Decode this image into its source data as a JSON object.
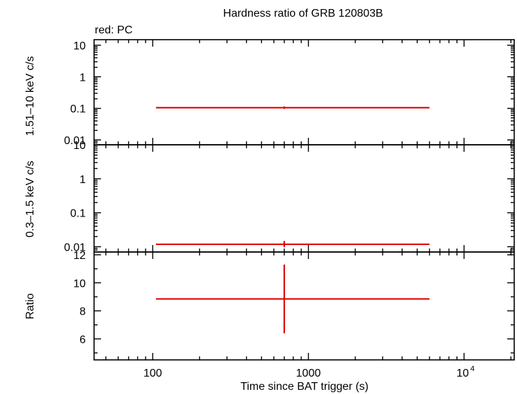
{
  "chart_data": {
    "type": "scatter",
    "title": "Hardness ratio of GRB 120803B",
    "subtitle": "red: PC",
    "xlabel": "Time since BAT trigger (s)",
    "x_scale": "log",
    "xlim": [
      42,
      21000
    ],
    "x_ticks": [
      {
        "value": 100,
        "label": "100"
      },
      {
        "value": 1000,
        "label": "1000"
      },
      {
        "value": 10000,
        "label": "10",
        "exponent": "4"
      }
    ],
    "color": "#e00000",
    "panels": [
      {
        "ylabel": "1.51–10 keV c/s",
        "y_scale": "log",
        "ylim": [
          0.007,
          15
        ],
        "y_ticks": [
          {
            "value": 0.01,
            "label": "0.01"
          },
          {
            "value": 0.1,
            "label": "0.1"
          },
          {
            "value": 1,
            "label": "1"
          },
          {
            "value": 10,
            "label": "10"
          }
        ],
        "points": [
          {
            "x": 700,
            "xlo": 105,
            "xhi": 6000,
            "y": 0.105,
            "ylo": 0.096,
            "yhi": 0.115
          }
        ]
      },
      {
        "ylabel": "0.3–1.5 keV c/s",
        "y_scale": "log",
        "ylim": [
          0.007,
          10
        ],
        "y_ticks": [
          {
            "value": 0.01,
            "label": "0.01"
          },
          {
            "value": 0.1,
            "label": "0.1"
          },
          {
            "value": 1,
            "label": "1"
          },
          {
            "value": 10,
            "label": "10"
          }
        ],
        "points": [
          {
            "x": 700,
            "xlo": 105,
            "xhi": 6000,
            "y": 0.0118,
            "ylo": 0.0097,
            "yhi": 0.0148
          }
        ]
      },
      {
        "ylabel": "Ratio",
        "y_scale": "linear",
        "ylim": [
          4.5,
          12.2
        ],
        "y_ticks": [
          {
            "value": 6,
            "label": "6"
          },
          {
            "value": 8,
            "label": "8"
          },
          {
            "value": 10,
            "label": "10"
          },
          {
            "value": 12,
            "label": "12"
          }
        ],
        "points": [
          {
            "x": 700,
            "xlo": 105,
            "xhi": 6000,
            "y": 8.85,
            "ylo": 6.4,
            "yhi": 11.3
          }
        ]
      }
    ]
  }
}
